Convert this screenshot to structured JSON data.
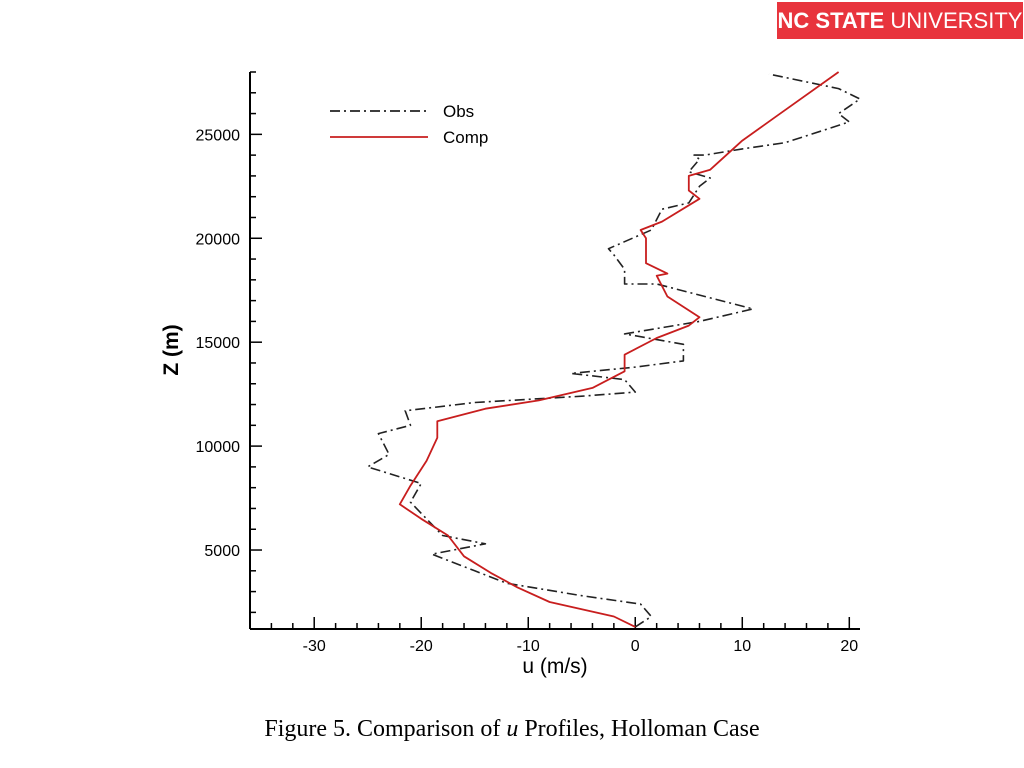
{
  "brand": {
    "bold": "NC STATE",
    "regular": "UNIVERSITY",
    "color": "#e8343d"
  },
  "caption": {
    "prefix": "Figure 5.  Comparison of ",
    "var": "u",
    "suffix": " Profiles, Holloman Case"
  },
  "chart_data": {
    "type": "line",
    "title": "",
    "xlabel": "u (m/s)",
    "ylabel": "Z (m)",
    "xlim": [
      -36,
      21
    ],
    "ylim": [
      1200,
      28000
    ],
    "xticks": [
      -30,
      -20,
      -10,
      0,
      10,
      20
    ],
    "yticks": [
      5000,
      10000,
      15000,
      20000,
      25000
    ],
    "legend": "top-left",
    "grid": false,
    "series": [
      {
        "name": "Obs",
        "style": "dash-dot",
        "color": "#222222",
        "points": [
          [
            0,
            1300
          ],
          [
            1.5,
            1800
          ],
          [
            0.5,
            2400
          ],
          [
            -5,
            2800
          ],
          [
            -12,
            3400
          ],
          [
            -15,
            4000
          ],
          [
            -19,
            4800
          ],
          [
            -14,
            5300
          ],
          [
            -18,
            5700
          ],
          [
            -21,
            7300
          ],
          [
            -20,
            8200
          ],
          [
            -25,
            9000
          ],
          [
            -23,
            9600
          ],
          [
            -24,
            10600
          ],
          [
            -21,
            11000
          ],
          [
            -21.5,
            11700
          ],
          [
            -15,
            12100
          ],
          [
            -5,
            12400
          ],
          [
            0,
            12600
          ],
          [
            -1,
            13200
          ],
          [
            -6,
            13500
          ],
          [
            0,
            13800
          ],
          [
            4.5,
            14100
          ],
          [
            4.5,
            14900
          ],
          [
            -1,
            15400
          ],
          [
            6,
            16000
          ],
          [
            11,
            16600
          ],
          [
            8,
            17000
          ],
          [
            2,
            17800
          ],
          [
            -1,
            17800
          ],
          [
            -1,
            18500
          ],
          [
            -2,
            19200
          ],
          [
            -2.5,
            19500
          ],
          [
            1.5,
            20400
          ],
          [
            2.5,
            21400
          ],
          [
            5,
            21700
          ],
          [
            6,
            22500
          ],
          [
            7,
            22900
          ],
          [
            5,
            23200
          ],
          [
            6,
            23800
          ],
          [
            5.5,
            24000
          ],
          [
            6.5,
            24000
          ],
          [
            10,
            24300
          ],
          [
            14,
            24600
          ],
          [
            20,
            25600
          ],
          [
            19,
            26000
          ],
          [
            21,
            26700
          ],
          [
            19,
            27200
          ],
          [
            12.5,
            27900
          ]
        ]
      },
      {
        "name": "Comp",
        "style": "solid",
        "color": "#c81e1e",
        "points": [
          [
            0,
            1300
          ],
          [
            -2,
            1800
          ],
          [
            -8,
            2500
          ],
          [
            -11,
            3200
          ],
          [
            -13.5,
            3900
          ],
          [
            -16,
            4700
          ],
          [
            -17.5,
            5700
          ],
          [
            -20,
            6500
          ],
          [
            -22,
            7200
          ],
          [
            -21,
            8100
          ],
          [
            -19.5,
            9300
          ],
          [
            -18.5,
            10400
          ],
          [
            -18.5,
            11200
          ],
          [
            -14,
            11800
          ],
          [
            -9,
            12200
          ],
          [
            -4,
            12800
          ],
          [
            -1,
            13600
          ],
          [
            -1,
            14400
          ],
          [
            2,
            15200
          ],
          [
            5,
            15800
          ],
          [
            6,
            16200
          ],
          [
            3,
            17200
          ],
          [
            2,
            18200
          ],
          [
            3,
            18300
          ],
          [
            1,
            18800
          ],
          [
            1,
            19400
          ],
          [
            1,
            20000
          ],
          [
            0.5,
            20400
          ],
          [
            2.5,
            20800
          ],
          [
            6,
            21900
          ],
          [
            5,
            22300
          ],
          [
            5,
            23000
          ],
          [
            7,
            23300
          ],
          [
            10,
            24700
          ],
          [
            13,
            25800
          ],
          [
            19,
            28000
          ]
        ]
      }
    ]
  }
}
